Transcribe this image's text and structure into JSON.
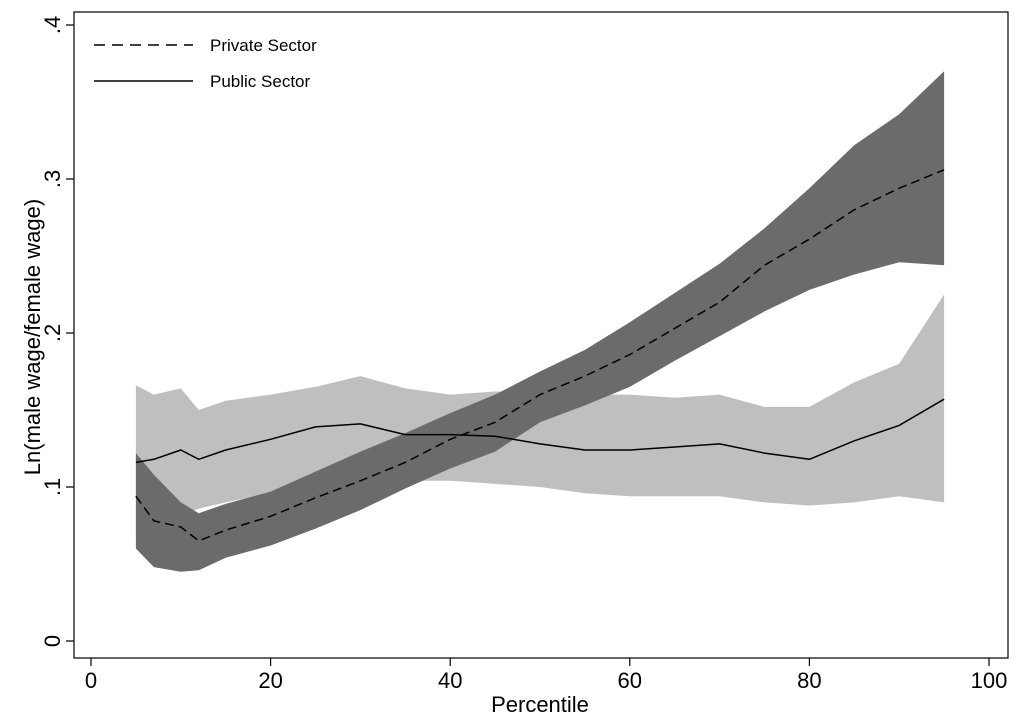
{
  "chart_data": {
    "type": "line",
    "title": "",
    "xlabel": "Percentile",
    "ylabel": "Ln(male wage/female wage)",
    "xlim": [
      0,
      100
    ],
    "ylim": [
      0,
      0.4
    ],
    "xticks": [
      0,
      20,
      40,
      60,
      80,
      100
    ],
    "xtick_labels": [
      "0",
      "20",
      "40",
      "60",
      "80",
      "100"
    ],
    "yticks": [
      0,
      0.1,
      0.2,
      0.3,
      0.4
    ],
    "ytick_labels": [
      "0",
      ".1",
      ".2",
      ".3",
      ".4"
    ],
    "grid": false,
    "legend_position": "top-left",
    "series": [
      {
        "name": "Private Sector",
        "style": "dashed",
        "line_color": "#000000",
        "band_color": "#6b6b6b",
        "x": [
          5,
          7,
          10,
          12,
          15,
          20,
          25,
          30,
          35,
          40,
          45,
          50,
          55,
          60,
          65,
          70,
          75,
          80,
          85,
          90,
          95
        ],
        "y": [
          0.094,
          0.078,
          0.074,
          0.065,
          0.072,
          0.081,
          0.093,
          0.104,
          0.116,
          0.131,
          0.142,
          0.16,
          0.172,
          0.186,
          0.203,
          0.22,
          0.244,
          0.261,
          0.28,
          0.294,
          0.306
        ],
        "lower": [
          0.06,
          0.048,
          0.045,
          0.046,
          0.054,
          0.062,
          0.073,
          0.085,
          0.099,
          0.112,
          0.123,
          0.142,
          0.153,
          0.165,
          0.182,
          0.198,
          0.214,
          0.228,
          0.238,
          0.246,
          0.244
        ],
        "upper": [
          0.122,
          0.108,
          0.09,
          0.083,
          0.089,
          0.097,
          0.11,
          0.123,
          0.135,
          0.148,
          0.16,
          0.175,
          0.189,
          0.207,
          0.226,
          0.245,
          0.268,
          0.294,
          0.322,
          0.342,
          0.37
        ]
      },
      {
        "name": "Public Sector",
        "style": "solid",
        "line_color": "#000000",
        "band_color": "#bfbfbf",
        "x": [
          5,
          7,
          10,
          12,
          15,
          20,
          25,
          30,
          35,
          40,
          45,
          50,
          55,
          60,
          65,
          70,
          75,
          80,
          85,
          90,
          95
        ],
        "y": [
          0.116,
          0.118,
          0.124,
          0.118,
          0.124,
          0.131,
          0.139,
          0.141,
          0.134,
          0.134,
          0.133,
          0.128,
          0.124,
          0.124,
          0.126,
          0.128,
          0.122,
          0.118,
          0.13,
          0.14,
          0.157
        ],
        "lower": [
          0.068,
          0.074,
          0.082,
          0.086,
          0.09,
          0.096,
          0.1,
          0.104,
          0.104,
          0.104,
          0.102,
          0.1,
          0.096,
          0.094,
          0.094,
          0.094,
          0.09,
          0.088,
          0.09,
          0.094,
          0.09
        ],
        "upper": [
          0.166,
          0.16,
          0.164,
          0.15,
          0.156,
          0.16,
          0.165,
          0.172,
          0.164,
          0.16,
          0.162,
          0.162,
          0.16,
          0.16,
          0.158,
          0.16,
          0.152,
          0.152,
          0.168,
          0.18,
          0.225
        ]
      }
    ]
  }
}
